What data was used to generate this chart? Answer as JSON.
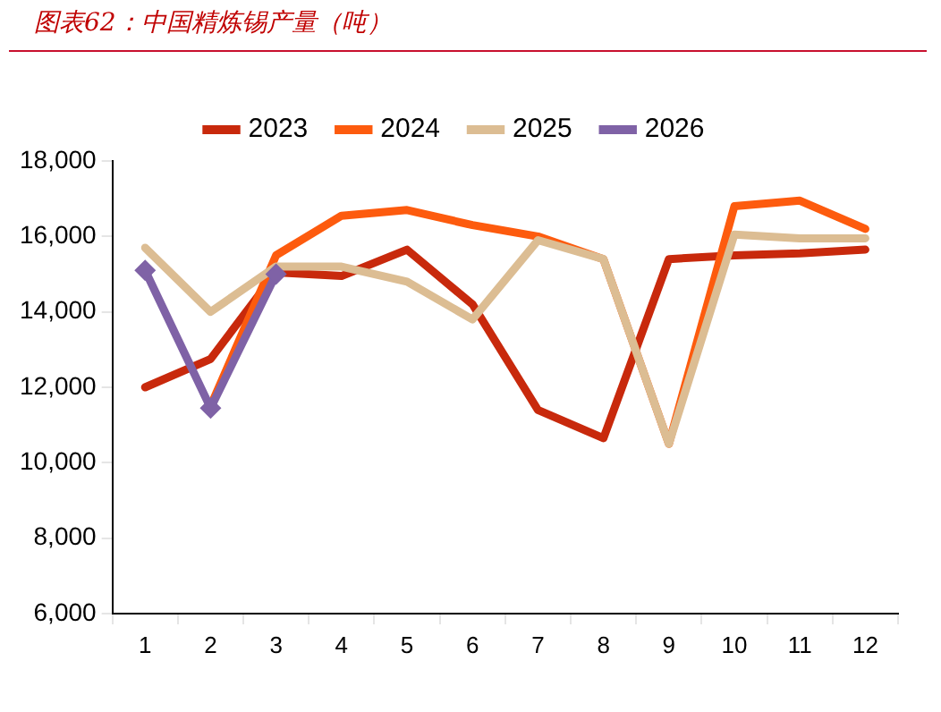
{
  "chart_data": {
    "type": "line",
    "title": "图表62：中国精炼锡产量（吨）",
    "categories": [
      "1",
      "2",
      "3",
      "4",
      "5",
      "6",
      "7",
      "8",
      "9",
      "10",
      "11",
      "12"
    ],
    "ylim": [
      6000,
      18000
    ],
    "yticks": [
      {
        "value": 6000,
        "label": "6,000"
      },
      {
        "value": 8000,
        "label": "8,000"
      },
      {
        "value": 10000,
        "label": "10,000"
      },
      {
        "value": 12000,
        "label": "12,000"
      },
      {
        "value": 14000,
        "label": "14,000"
      },
      {
        "value": 16000,
        "label": "16,000"
      },
      {
        "value": 18000,
        "label": "18,000"
      }
    ],
    "grid": false,
    "legend": "top",
    "line_style": "solid",
    "series": [
      {
        "name": "2023",
        "color": "#c8290c",
        "marker": "none",
        "values": [
          12000,
          12750,
          15050,
          14950,
          15650,
          14200,
          11400,
          10650,
          15400,
          15500,
          15550,
          15650
        ]
      },
      {
        "name": "2024",
        "color": "#fd5b0e",
        "marker": "none",
        "values": [
          null,
          11500,
          15500,
          16550,
          16700,
          16300,
          16000,
          15400,
          10500,
          16800,
          16950,
          16200
        ]
      },
      {
        "name": "2025",
        "color": "#dcbd93",
        "marker": "none",
        "values": [
          15700,
          14000,
          15200,
          15200,
          14800,
          13800,
          15900,
          15400,
          10500,
          16050,
          15950,
          15950
        ]
      },
      {
        "name": "2026",
        "color": "#7f62a6",
        "marker": "diamond",
        "values": [
          15100,
          11450,
          15000,
          null,
          null,
          null,
          null,
          null,
          null,
          null,
          null,
          null
        ]
      }
    ]
  }
}
